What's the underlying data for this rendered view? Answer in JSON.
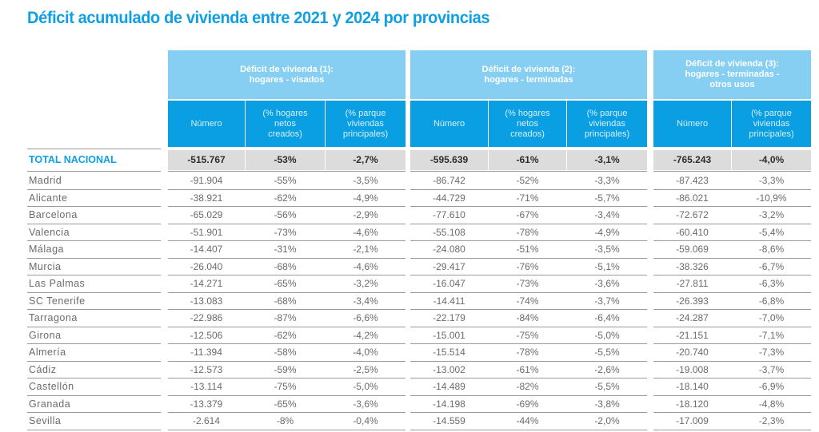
{
  "title": "Déficit acumulado de vivienda entre 2021 y 2024 por provincias",
  "colors": {
    "title": "#0f9fe3",
    "group_header": "#86cff3",
    "sub_header": "#0a9ee2",
    "total_row": "#dcdcdc"
  },
  "groups": [
    {
      "label": "Déficit de vivienda (1):\nhogares - visados",
      "columns": [
        "Número",
        "(% hogares netos creados)",
        "(% parque viviendas principales)"
      ]
    },
    {
      "label": "Déficit de vivienda (2):\nhogares - terminadas",
      "columns": [
        "Número",
        "(% hogares netos creados)",
        "(% parque viviendas principales)"
      ]
    },
    {
      "label": "Déficit de vivienda (3):\nhogares - terminadas -\notros usos",
      "columns": [
        "Número",
        "(% parque viviendas principales)"
      ]
    }
  ],
  "total": {
    "label": "TOTAL NACIONAL",
    "values": [
      "-515.767",
      "-53%",
      "-2,7%",
      "-595.639",
      "-61%",
      "-3,1%",
      "-765.243",
      "-4,0%"
    ]
  },
  "rows": [
    {
      "province": "Madrid",
      "values": [
        "-91.904",
        "-55%",
        "-3,5%",
        "-86.742",
        "-52%",
        "-3,3%",
        "-87.423",
        "-3,3%"
      ]
    },
    {
      "province": "Alicante",
      "values": [
        "-38.921",
        "-62%",
        "-4,9%",
        "-44.729",
        "-71%",
        "-5,7%",
        "-86.021",
        "-10,9%"
      ]
    },
    {
      "province": "Barcelona",
      "values": [
        "-65.029",
        "-56%",
        "-2,9%",
        "-77.610",
        "-67%",
        "-3,4%",
        "-72.672",
        "-3,2%"
      ]
    },
    {
      "province": "Valencia",
      "values": [
        "-51.901",
        "-73%",
        "-4,6%",
        "-55.108",
        "-78%",
        "-4,9%",
        "-60.410",
        "-5,4%"
      ]
    },
    {
      "province": "Málaga",
      "values": [
        "-14.407",
        "-31%",
        "-2,1%",
        "-24.080",
        "-51%",
        "-3,5%",
        "-59.069",
        "-8,6%"
      ]
    },
    {
      "province": "Murcia",
      "values": [
        "-26.040",
        "-68%",
        "-4,6%",
        "-29.417",
        "-76%",
        "-5,1%",
        "-38.326",
        "-6,7%"
      ]
    },
    {
      "province": "Las Palmas",
      "values": [
        "-14.271",
        "-65%",
        "-3,2%",
        "-16.047",
        "-73%",
        "-3,6%",
        "-27.811",
        "-6,3%"
      ]
    },
    {
      "province": "SC Tenerife",
      "values": [
        "-13.083",
        "-68%",
        "-3,4%",
        "-14.411",
        "-74%",
        "-3,7%",
        "-26.393",
        "-6,8%"
      ]
    },
    {
      "province": "Tarragona",
      "values": [
        "-22.986",
        "-87%",
        "-6,6%",
        "-22.179",
        "-84%",
        "-6,4%",
        "-24.287",
        "-7,0%"
      ]
    },
    {
      "province": "Girona",
      "values": [
        "-12.506",
        "-62%",
        "-4,2%",
        "-15.001",
        "-75%",
        "-5,0%",
        "-21.151",
        "-7,1%"
      ]
    },
    {
      "province": "Almería",
      "values": [
        "-11.394",
        "-58%",
        "-4,0%",
        "-15.514",
        "-78%",
        "-5,5%",
        "-20.740",
        "-7,3%"
      ]
    },
    {
      "province": "Cádiz",
      "values": [
        "-12.573",
        "-59%",
        "-2,5%",
        "-13.002",
        "-61%",
        "-2,6%",
        "-19.008",
        "-3,7%"
      ]
    },
    {
      "province": "Castellón",
      "values": [
        "-13.114",
        "-75%",
        "-5,0%",
        "-14.489",
        "-82%",
        "-5,5%",
        "-18.140",
        "-6,9%"
      ]
    },
    {
      "province": "Granada",
      "values": [
        "-13.379",
        "-65%",
        "-3,6%",
        "-14.198",
        "-69%",
        "-3,8%",
        "-18.120",
        "-4,8%"
      ]
    },
    {
      "province": "Sevilla",
      "values": [
        "-2.614",
        "-8%",
        "-0,4%",
        "-14.559",
        "-44%",
        "-2,0%",
        "-17.009",
        "-2,3%"
      ]
    }
  ]
}
